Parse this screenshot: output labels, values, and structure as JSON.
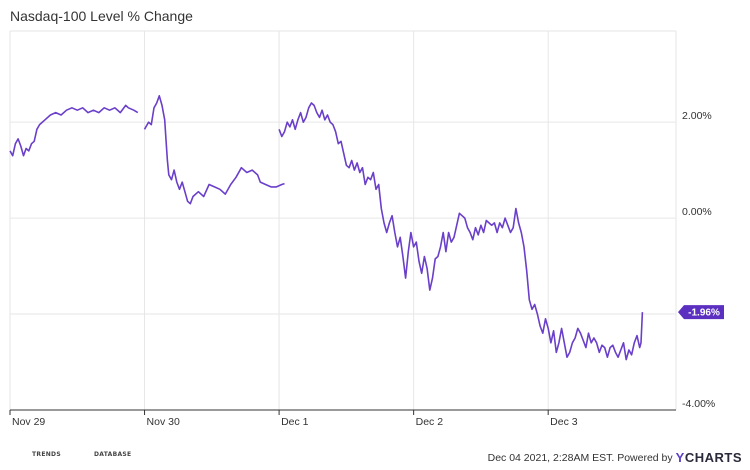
{
  "title": "Nasdaq-100 Level % Change",
  "footer": {
    "timestamp": "Dec 04 2021, 2:28AM EST. Powered by",
    "brand_y": "Y",
    "brand_rest": "CHARTS",
    "logo1_badge": "ETF",
    "logo1_text": "TRENDS",
    "logo2_badge": "ETF",
    "logo2_text": "DATABASE"
  },
  "colors": {
    "line": "#6a3fc9",
    "grid": "#e6e6e6",
    "label_bg": "#5b2fc0",
    "logo1": "#2db24a",
    "logo2": "#1e88d0"
  },
  "chart_data": {
    "type": "line",
    "title": "Nasdaq-100 Level % Change",
    "x_unit": "trading days",
    "x_ticks": [
      {
        "x": 0,
        "label": "Nov 29"
      },
      {
        "x": 1,
        "label": "Nov 30"
      },
      {
        "x": 2,
        "label": "Dec 1"
      },
      {
        "x": 3,
        "label": "Dec 2"
      },
      {
        "x": 4,
        "label": "Dec 3"
      }
    ],
    "xlim": [
      0,
      4.95
    ],
    "ylim": [
      -4.0,
      3.9
    ],
    "y_ticks": [
      {
        "value": 2.0,
        "label": "2.00%"
      },
      {
        "value": 0.0,
        "label": "0.00%"
      },
      {
        "value": -4.0,
        "label": "-4.00%"
      }
    ],
    "grid": true,
    "last_value_label": "-1.96%",
    "series": [
      {
        "segments": [
          [
            [
              0.0,
              1.4
            ],
            [
              0.02,
              1.3
            ],
            [
              0.04,
              1.55
            ],
            [
              0.06,
              1.65
            ],
            [
              0.08,
              1.5
            ],
            [
              0.1,
              1.3
            ],
            [
              0.12,
              1.45
            ],
            [
              0.14,
              1.4
            ],
            [
              0.16,
              1.55
            ],
            [
              0.18,
              1.6
            ],
            [
              0.2,
              1.85
            ],
            [
              0.22,
              1.95
            ],
            [
              0.26,
              2.05
            ],
            [
              0.3,
              2.15
            ],
            [
              0.34,
              2.2
            ],
            [
              0.38,
              2.15
            ],
            [
              0.42,
              2.25
            ],
            [
              0.46,
              2.3
            ],
            [
              0.5,
              2.25
            ],
            [
              0.54,
              2.3
            ],
            [
              0.58,
              2.2
            ],
            [
              0.62,
              2.25
            ],
            [
              0.66,
              2.2
            ],
            [
              0.7,
              2.3
            ],
            [
              0.74,
              2.25
            ],
            [
              0.78,
              2.3
            ],
            [
              0.82,
              2.2
            ],
            [
              0.86,
              2.35
            ],
            [
              0.88,
              2.3
            ],
            [
              0.92,
              2.25
            ],
            [
              0.95,
              2.2
            ]
          ],
          [
            [
              1.0,
              1.85
            ],
            [
              1.03,
              2.0
            ],
            [
              1.05,
              1.95
            ],
            [
              1.07,
              2.3
            ],
            [
              1.09,
              2.4
            ],
            [
              1.11,
              2.55
            ],
            [
              1.13,
              2.35
            ],
            [
              1.15,
              2.05
            ],
            [
              1.16,
              1.6
            ],
            [
              1.17,
              1.2
            ],
            [
              1.18,
              0.9
            ],
            [
              1.2,
              0.8
            ],
            [
              1.22,
              1.0
            ],
            [
              1.24,
              0.75
            ],
            [
              1.26,
              0.6
            ],
            [
              1.28,
              0.75
            ],
            [
              1.3,
              0.55
            ],
            [
              1.32,
              0.35
            ],
            [
              1.34,
              0.3
            ],
            [
              1.36,
              0.45
            ],
            [
              1.4,
              0.55
            ],
            [
              1.44,
              0.45
            ],
            [
              1.48,
              0.7
            ],
            [
              1.52,
              0.65
            ],
            [
              1.56,
              0.6
            ],
            [
              1.6,
              0.5
            ],
            [
              1.64,
              0.7
            ],
            [
              1.68,
              0.85
            ],
            [
              1.72,
              1.05
            ],
            [
              1.76,
              0.95
            ],
            [
              1.8,
              1.0
            ],
            [
              1.84,
              0.9
            ],
            [
              1.86,
              0.75
            ],
            [
              1.9,
              0.7
            ],
            [
              1.94,
              0.65
            ],
            [
              1.98,
              0.65
            ],
            [
              2.02,
              0.7
            ],
            [
              2.04,
              0.72
            ]
          ],
          [
            [
              2.0,
              1.85
            ],
            [
              2.02,
              1.7
            ],
            [
              2.04,
              1.8
            ],
            [
              2.06,
              2.0
            ],
            [
              2.08,
              1.9
            ],
            [
              2.1,
              2.05
            ],
            [
              2.12,
              1.85
            ],
            [
              2.14,
              2.05
            ],
            [
              2.16,
              2.2
            ],
            [
              2.18,
              2.0
            ],
            [
              2.2,
              2.1
            ],
            [
              2.22,
              2.3
            ],
            [
              2.24,
              2.4
            ],
            [
              2.26,
              2.35
            ],
            [
              2.28,
              2.2
            ],
            [
              2.3,
              2.1
            ],
            [
              2.32,
              2.25
            ],
            [
              2.34,
              2.05
            ],
            [
              2.36,
              2.15
            ],
            [
              2.38,
              2.0
            ],
            [
              2.4,
              1.95
            ],
            [
              2.42,
              1.8
            ],
            [
              2.44,
              1.55
            ],
            [
              2.46,
              1.6
            ],
            [
              2.48,
              1.35
            ],
            [
              2.5,
              1.1
            ],
            [
              2.52,
              1.05
            ],
            [
              2.54,
              1.2
            ],
            [
              2.56,
              1.0
            ],
            [
              2.58,
              1.15
            ],
            [
              2.6,
              0.95
            ],
            [
              2.62,
              1.05
            ],
            [
              2.64,
              0.7
            ],
            [
              2.66,
              0.85
            ],
            [
              2.68,
              0.8
            ],
            [
              2.7,
              0.95
            ],
            [
              2.72,
              0.6
            ],
            [
              2.74,
              0.7
            ],
            [
              2.76,
              0.2
            ],
            [
              2.78,
              -0.1
            ],
            [
              2.8,
              -0.3
            ],
            [
              2.82,
              -0.1
            ],
            [
              2.84,
              0.05
            ],
            [
              2.86,
              -0.3
            ],
            [
              2.88,
              -0.6
            ],
            [
              2.9,
              -0.4
            ],
            [
              2.92,
              -0.8
            ],
            [
              2.94,
              -1.25
            ],
            [
              2.96,
              -0.7
            ],
            [
              2.98,
              -0.3
            ],
            [
              3.0,
              -0.6
            ],
            [
              3.02,
              -0.5
            ],
            [
              3.04,
              -0.9
            ],
            [
              3.06,
              -1.15
            ],
            [
              3.08,
              -0.8
            ],
            [
              3.1,
              -1.05
            ],
            [
              3.12,
              -1.5
            ],
            [
              3.14,
              -1.25
            ],
            [
              3.16,
              -0.85
            ],
            [
              3.18,
              -0.8
            ],
            [
              3.2,
              -0.6
            ],
            [
              3.22,
              -0.3
            ],
            [
              3.24,
              -0.7
            ],
            [
              3.26,
              -0.3
            ],
            [
              3.28,
              -0.5
            ],
            [
              3.3,
              -0.4
            ],
            [
              3.32,
              -0.15
            ],
            [
              3.34,
              0.1
            ],
            [
              3.36,
              0.05
            ],
            [
              3.38,
              0.0
            ],
            [
              3.4,
              -0.2
            ],
            [
              3.42,
              -0.3
            ],
            [
              3.44,
              -0.45
            ],
            [
              3.46,
              -0.2
            ],
            [
              3.48,
              -0.35
            ],
            [
              3.5,
              -0.15
            ],
            [
              3.52,
              -0.3
            ],
            [
              3.54,
              -0.05
            ],
            [
              3.56,
              -0.1
            ],
            [
              3.58,
              -0.15
            ],
            [
              3.6,
              -0.1
            ],
            [
              3.62,
              -0.3
            ],
            [
              3.64,
              -0.1
            ],
            [
              3.66,
              -0.2
            ],
            [
              3.68,
              0.0
            ],
            [
              3.7,
              -0.15
            ],
            [
              3.72,
              -0.3
            ],
            [
              3.74,
              -0.2
            ],
            [
              3.76,
              0.2
            ],
            [
              3.78,
              -0.1
            ],
            [
              3.8,
              -0.3
            ],
            [
              3.82,
              -0.6
            ],
            [
              3.84,
              -1.1
            ],
            [
              3.86,
              -1.7
            ],
            [
              3.88,
              -1.9
            ],
            [
              3.9,
              -1.8
            ],
            [
              3.92,
              -2.0
            ],
            [
              3.94,
              -2.25
            ],
            [
              3.96,
              -2.4
            ],
            [
              3.98,
              -2.1
            ],
            [
              4.0,
              -2.3
            ],
            [
              4.02,
              -2.6
            ],
            [
              4.04,
              -2.35
            ],
            [
              4.06,
              -2.8
            ],
            [
              4.08,
              -2.6
            ],
            [
              4.1,
              -2.3
            ],
            [
              4.12,
              -2.6
            ],
            [
              4.14,
              -2.9
            ],
            [
              4.16,
              -2.8
            ],
            [
              4.18,
              -2.6
            ],
            [
              4.2,
              -2.5
            ],
            [
              4.22,
              -2.3
            ],
            [
              4.24,
              -2.4
            ],
            [
              4.26,
              -2.55
            ],
            [
              4.28,
              -2.7
            ],
            [
              4.3,
              -2.4
            ],
            [
              4.32,
              -2.6
            ],
            [
              4.34,
              -2.5
            ],
            [
              4.36,
              -2.6
            ],
            [
              4.38,
              -2.8
            ],
            [
              4.4,
              -2.65
            ],
            [
              4.42,
              -2.7
            ],
            [
              4.44,
              -2.9
            ],
            [
              4.46,
              -2.7
            ],
            [
              4.48,
              -2.65
            ],
            [
              4.5,
              -2.8
            ],
            [
              4.52,
              -2.9
            ],
            [
              4.54,
              -2.75
            ],
            [
              4.56,
              -2.6
            ],
            [
              4.58,
              -2.95
            ],
            [
              4.6,
              -2.75
            ],
            [
              4.62,
              -2.85
            ],
            [
              4.64,
              -2.6
            ],
            [
              4.66,
              -2.45
            ],
            [
              4.68,
              -2.7
            ],
            [
              4.69,
              -2.6
            ],
            [
              4.7,
              -1.96
            ]
          ]
        ]
      }
    ]
  }
}
